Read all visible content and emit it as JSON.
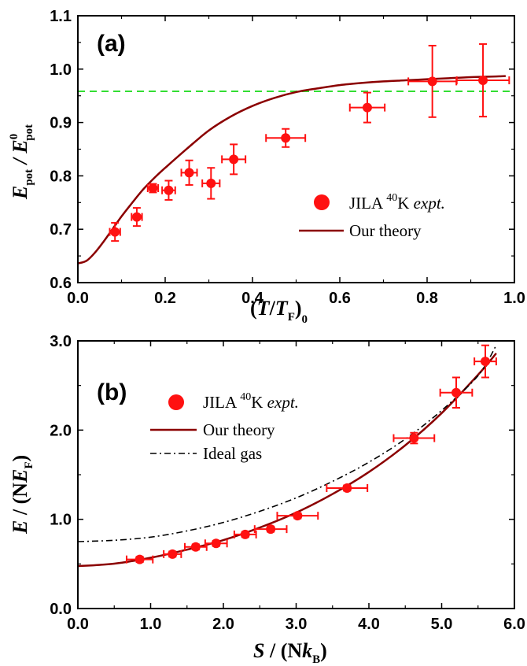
{
  "chart_data": [
    {
      "panel": "(a)",
      "type": "scatter",
      "xlabel": "(T/T_F)^0",
      "ylabel": "E_pot / E^0_pot",
      "xlim": [
        0.0,
        1.0
      ],
      "ylim": [
        0.6,
        1.1
      ],
      "x_ticks": [
        "0.0",
        "0.2",
        "0.4",
        "0.6",
        "0.8",
        "1.0"
      ],
      "y_ticks": [
        "0.6",
        "0.7",
        "0.8",
        "0.9",
        "1.0",
        "1.1"
      ],
      "legend_position": "bottom-right",
      "reference_line": {
        "y": 1.0,
        "style": "dashed",
        "color": "#33dd33"
      },
      "series": [
        {
          "name": "JILA 40K expt.",
          "kind": "points",
          "color": "#ff1111",
          "points": [
            {
              "x": 0.085,
              "y": 0.695,
              "xerr": 0.012,
              "yerr": 0.017
            },
            {
              "x": 0.135,
              "y": 0.723,
              "xerr": 0.012,
              "yerr": 0.017
            },
            {
              "x": 0.172,
              "y": 0.777,
              "xerr": 0.012,
              "yerr": 0.008
            },
            {
              "x": 0.208,
              "y": 0.773,
              "xerr": 0.015,
              "yerr": 0.018
            },
            {
              "x": 0.255,
              "y": 0.806,
              "xerr": 0.018,
              "yerr": 0.023
            },
            {
              "x": 0.305,
              "y": 0.786,
              "xerr": 0.02,
              "yerr": 0.029
            },
            {
              "x": 0.357,
              "y": 0.831,
              "xerr": 0.027,
              "yerr": 0.028
            },
            {
              "x": 0.476,
              "y": 0.871,
              "xerr": 0.045,
              "yerr": 0.017
            },
            {
              "x": 0.663,
              "y": 0.928,
              "xerr": 0.04,
              "yerr": 0.028
            },
            {
              "x": 0.812,
              "y": 0.977,
              "xerr": 0.055,
              "yerr": 0.067
            },
            {
              "x": 0.928,
              "y": 0.979,
              "xerr": 0.06,
              "yerr": 0.068
            }
          ]
        },
        {
          "name": "Our theory",
          "kind": "line",
          "color": "#8b0000",
          "x": [
            0.0,
            0.02,
            0.04,
            0.06,
            0.08,
            0.1,
            0.12,
            0.15,
            0.18,
            0.2,
            0.25,
            0.3,
            0.35,
            0.4,
            0.45,
            0.5,
            0.55,
            0.6,
            0.65,
            0.7,
            0.75,
            0.8,
            0.85,
            0.9,
            0.95,
            0.98
          ],
          "y": [
            0.636,
            0.641,
            0.657,
            0.678,
            0.701,
            0.724,
            0.745,
            0.775,
            0.8,
            0.815,
            0.851,
            0.885,
            0.911,
            0.931,
            0.946,
            0.957,
            0.964,
            0.97,
            0.974,
            0.977,
            0.979,
            0.981,
            0.983,
            0.985,
            0.986,
            0.987
          ]
        }
      ]
    },
    {
      "panel": "(b)",
      "type": "scatter",
      "xlabel": "S / (Nk_B)",
      "ylabel": "E / (NE_F)",
      "xlim": [
        0.0,
        6.0
      ],
      "ylim": [
        0.0,
        3.0
      ],
      "x_ticks": [
        "0.0",
        "1.0",
        "2.0",
        "3.0",
        "4.0",
        "5.0",
        "6.0"
      ],
      "y_ticks": [
        "0.0",
        "1.0",
        "2.0",
        "3.0"
      ],
      "legend_position": "top-left",
      "series": [
        {
          "name": "JILA 40K expt.",
          "kind": "points",
          "color": "#ff1111",
          "points": [
            {
              "x": 0.85,
              "y": 0.55,
              "xerr": 0.18,
              "yerr": 0.03
            },
            {
              "x": 1.3,
              "y": 0.61,
              "xerr": 0.12,
              "yerr": 0.03
            },
            {
              "x": 1.62,
              "y": 0.69,
              "xerr": 0.15,
              "yerr": 0.03
            },
            {
              "x": 1.9,
              "y": 0.73,
              "xerr": 0.15,
              "yerr": 0.03
            },
            {
              "x": 2.3,
              "y": 0.83,
              "xerr": 0.15,
              "yerr": 0.03
            },
            {
              "x": 2.65,
              "y": 0.89,
              "xerr": 0.22,
              "yerr": 0.03
            },
            {
              "x": 3.02,
              "y": 1.04,
              "xerr": 0.28,
              "yerr": 0.03
            },
            {
              "x": 3.7,
              "y": 1.35,
              "xerr": 0.28,
              "yerr": 0.03
            },
            {
              "x": 4.62,
              "y": 1.91,
              "xerr": 0.28,
              "yerr": 0.06
            },
            {
              "x": 5.2,
              "y": 2.42,
              "xerr": 0.22,
              "yerr": 0.17
            },
            {
              "x": 5.6,
              "y": 2.77,
              "xerr": 0.15,
              "yerr": 0.18
            }
          ]
        },
        {
          "name": "Our theory",
          "kind": "line",
          "color": "#8b0000",
          "x": [
            0.0,
            0.5,
            1.0,
            1.5,
            2.0,
            2.5,
            3.0,
            3.5,
            4.0,
            4.5,
            5.0,
            5.5,
            5.75
          ],
          "y": [
            0.475,
            0.503,
            0.569,
            0.66,
            0.767,
            0.907,
            1.075,
            1.283,
            1.53,
            1.83,
            2.19,
            2.62,
            2.86
          ]
        },
        {
          "name": "Ideal gas",
          "kind": "line",
          "style": "dash-dot",
          "color": "#000000",
          "x": [
            0.0,
            0.5,
            1.0,
            1.5,
            2.0,
            2.5,
            3.0,
            3.5,
            4.0,
            4.5,
            5.0,
            5.5,
            5.75
          ],
          "y": [
            0.75,
            0.765,
            0.8,
            0.87,
            0.965,
            1.09,
            1.24,
            1.425,
            1.64,
            1.9,
            2.22,
            2.61,
            2.95
          ]
        }
      ]
    }
  ],
  "legend": {
    "expt_prefix": "JILA ",
    "expt_isotope": "40",
    "expt_element": "K ",
    "expt_suffix": "expt.",
    "theory": "Our theory",
    "ideal": "Ideal gas"
  },
  "labels_a": {
    "x_open": "(",
    "x_T": "T",
    "x_slash": "/",
    "x_TF": "T",
    "x_F_sub": "F",
    "x_close": ")",
    "x_sup": "0",
    "y_E": "E",
    "y_pot_sub": "pot",
    "y_slash": " / ",
    "y_E2": "E",
    "y_zero_sup": "0",
    "y_pot_sub2": "pot"
  },
  "labels_b": {
    "x_S": "S",
    "x_mid": " / (N",
    "x_k": "k",
    "x_B_sub": "B",
    "x_close": ")",
    "y_E": "E",
    "y_mid": " / (N",
    "y_EF": "E",
    "y_F_sub": "F",
    "y_close": ")"
  }
}
